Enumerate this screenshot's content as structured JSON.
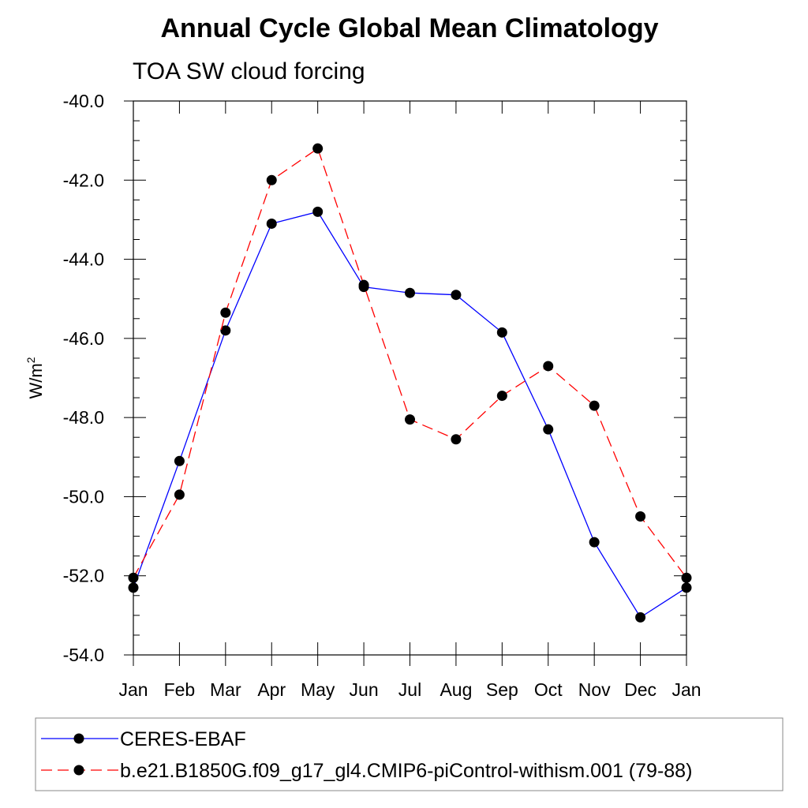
{
  "chart_data": {
    "type": "line",
    "title": "Annual Cycle Global Mean Climatology",
    "subtitle": "TOA SW cloud forcing",
    "ylabel_base": "W/m",
    "ylabel_sup": "2",
    "ylim": [
      -54.0,
      -40.0
    ],
    "yticks": [
      "-40.0",
      "-42.0",
      "-44.0",
      "-46.0",
      "-48.0",
      "-50.0",
      "-52.0",
      "-54.0"
    ],
    "categories": [
      "Jan",
      "Feb",
      "Mar",
      "Apr",
      "May",
      "Jun",
      "Jul",
      "Aug",
      "Sep",
      "Oct",
      "Nov",
      "Dec",
      "Jan"
    ],
    "series": [
      {
        "name": "CERES-EBAF",
        "color": "#0000ff",
        "dash": "solid",
        "values": [
          -52.3,
          -49.1,
          -45.8,
          -43.1,
          -42.8,
          -44.7,
          -44.85,
          -44.9,
          -45.85,
          -48.3,
          -51.15,
          -53.05,
          -52.3
        ]
      },
      {
        "name": "b.e21.B1850G.f09_g17_gl4.CMIP6-piControl-withism.001 (79-88)",
        "color": "#ff0000",
        "dash": "dashed",
        "values": [
          -52.05,
          -49.95,
          -45.35,
          -42.0,
          -41.2,
          -44.65,
          -48.05,
          -48.55,
          -47.45,
          -46.7,
          -47.7,
          -50.5,
          -52.05
        ]
      }
    ]
  }
}
